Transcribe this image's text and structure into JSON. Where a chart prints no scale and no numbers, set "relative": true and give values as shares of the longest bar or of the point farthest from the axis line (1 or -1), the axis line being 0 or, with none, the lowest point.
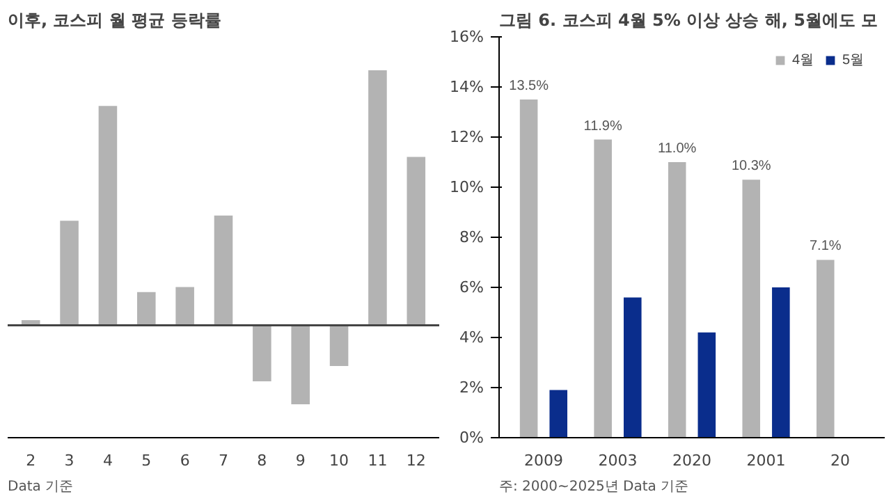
{
  "chart_data": [
    {
      "type": "bar",
      "title": "이후, 코스피 월 평균 등락률",
      "relative": true,
      "categories": [
        "2",
        "3",
        "4",
        "5",
        "6",
        "7",
        "8",
        "9",
        "10",
        "11",
        "12"
      ],
      "series": [
        {
          "color": "#b3b3b3",
          "values": [
            0.02,
            0.41,
            0.86,
            0.13,
            0.15,
            0.43,
            -0.22,
            -0.31,
            -0.16,
            1,
            0.66
          ]
        }
      ],
      "annotations": [
        "Data 기준"
      ],
      "legend": false,
      "grid": false
    },
    {
      "type": "bar",
      "title": "그림 6. 코스피 4월 5% 이상 상승 해, 5월에도 모",
      "categories": [
        "2009",
        "2003",
        "2020",
        "2001",
        "20"
      ],
      "series": [
        {
          "name": "4월",
          "color": "#b3b3b3",
          "values": [
            13.5,
            11.9,
            11.0,
            10.3,
            7.1
          ],
          "value_labels": [
            "13.5%",
            "11.9%",
            "11.0%",
            "10.3%",
            "7.1%"
          ]
        },
        {
          "name": "5월",
          "color": "#0a2d8c",
          "values": [
            1.9,
            5.6,
            4.2,
            6.0,
            null
          ]
        }
      ],
      "ylim": [
        0,
        16
      ],
      "yticks": [
        {
          "value": 0,
          "label": "0%"
        },
        {
          "value": 2,
          "label": "2%"
        },
        {
          "value": 4,
          "label": "4%"
        },
        {
          "value": 6,
          "label": "6%"
        },
        {
          "value": 8,
          "label": "8%"
        },
        {
          "value": 10,
          "label": "10%"
        },
        {
          "value": 12,
          "label": "12%"
        },
        {
          "value": 14,
          "label": "14%"
        },
        {
          "value": 16,
          "label": "16%"
        }
      ],
      "annotations": [
        "주: 2000~2025년 Data 기준"
      ],
      "legend": "top right",
      "grid": false
    }
  ]
}
